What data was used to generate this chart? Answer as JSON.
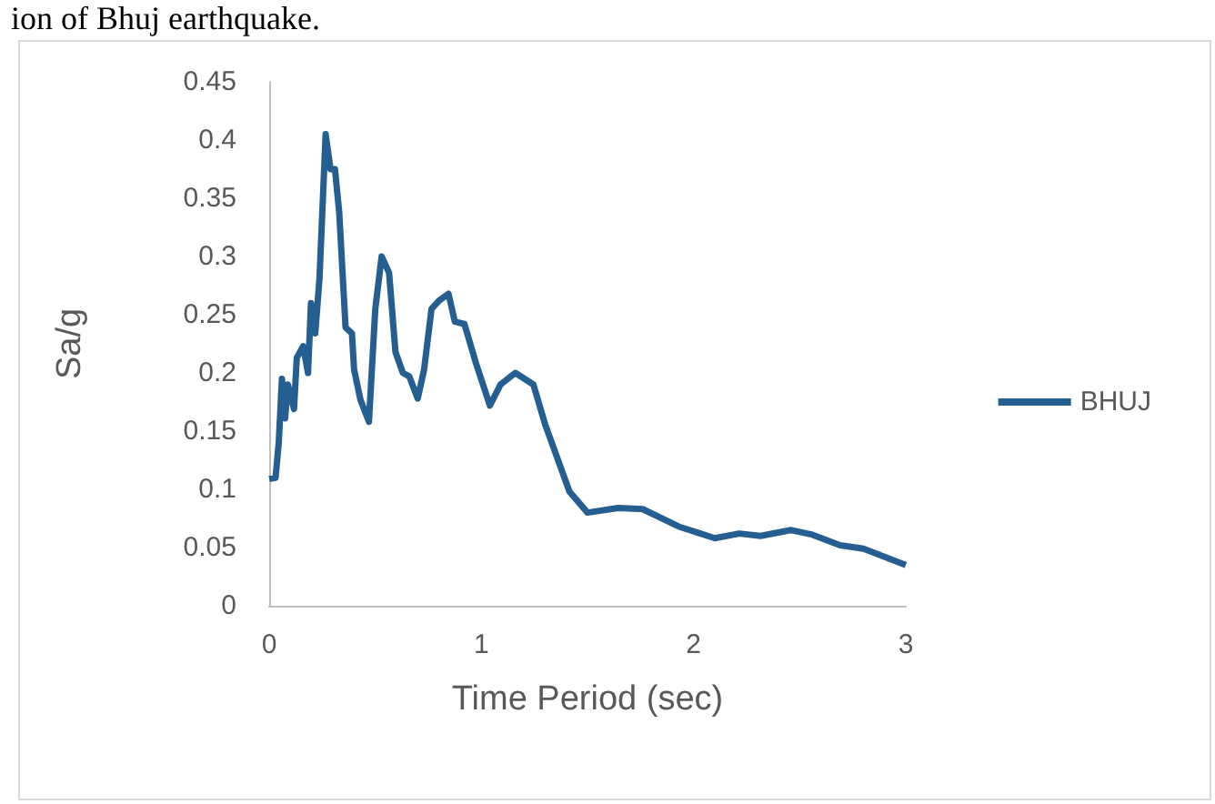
{
  "chart_data": {
    "type": "line",
    "xlabel": "Time Period (sec)",
    "ylabel": "Sa/g",
    "annotations": [
      "ion of Bhuj earthquake."
    ],
    "xlim": [
      0,
      3
    ],
    "xticks": [
      0,
      1,
      2,
      3
    ],
    "ylim": [
      0,
      0.45
    ],
    "yticks": [
      0,
      0.05,
      0.1,
      0.15,
      0.2,
      0.25,
      0.3,
      0.35,
      0.4,
      0.45
    ],
    "grid": false,
    "legend": "right",
    "marker": "none",
    "line_style": "solid",
    "series": [
      {
        "name": "BHUJ",
        "color": "#255e91",
        "x": [
          0,
          0.03,
          0.045,
          0.06,
          0.075,
          0.088,
          0.117,
          0.13,
          0.16,
          0.183,
          0.197,
          0.217,
          0.237,
          0.266,
          0.289,
          0.31,
          0.33,
          0.36,
          0.39,
          0.4,
          0.43,
          0.47,
          0.5,
          0.53,
          0.565,
          0.595,
          0.63,
          0.66,
          0.7,
          0.73,
          0.765,
          0.8,
          0.845,
          0.875,
          0.92,
          0.975,
          1.04,
          1.09,
          1.16,
          1.245,
          1.3,
          1.415,
          1.5,
          1.645,
          1.76,
          1.93,
          2.1,
          2.215,
          2.315,
          2.46,
          2.56,
          2.69,
          2.8,
          3
        ],
        "values": [
          0.109,
          0.11,
          0.14,
          0.195,
          0.161,
          0.19,
          0.169,
          0.213,
          0.223,
          0.2,
          0.26,
          0.234,
          0.281,
          0.405,
          0.375,
          0.375,
          0.338,
          0.239,
          0.234,
          0.203,
          0.177,
          0.158,
          0.255,
          0.3,
          0.286,
          0.218,
          0.2,
          0.197,
          0.178,
          0.203,
          0.255,
          0.262,
          0.268,
          0.244,
          0.242,
          0.208,
          0.172,
          0.19,
          0.2,
          0.19,
          0.156,
          0.098,
          0.08,
          0.084,
          0.083,
          0.068,
          0.058,
          0.062,
          0.06,
          0.065,
          0.061,
          0.052,
          0.049,
          0.035
        ]
      }
    ]
  }
}
